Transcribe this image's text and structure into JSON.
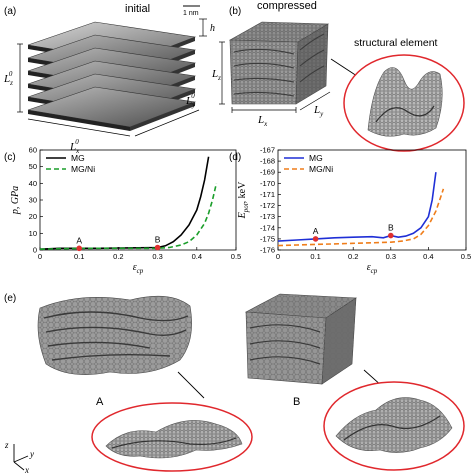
{
  "panels": {
    "a": {
      "label": "(a)",
      "title": "initial",
      "scale_bar": "1 nm",
      "h": "h",
      "Lz": "L",
      "Lz_sub": "z",
      "Lz_sup": "0",
      "Lx": "L",
      "Lx_sub": "x",
      "Lx_sup": "0",
      "Ly": "L",
      "Ly_sub": "y",
      "Ly_sup": "0"
    },
    "b": {
      "label": "(b)",
      "title": "compressed",
      "Lz": "L",
      "Lz_sub": "z",
      "Lx": "L",
      "Lx_sub": "x",
      "Ly": "L",
      "Ly_sub": "y",
      "inset_title": "structural element"
    },
    "c": {
      "label": "(c)"
    },
    "d": {
      "label": "(d)"
    },
    "e": {
      "label": "(e)",
      "snap_A": "A",
      "snap_B": "B",
      "axis_z": "z",
      "axis_y": "y",
      "axis_x": "x"
    }
  },
  "chart_data": [
    {
      "type": "line",
      "panel": "c",
      "ylabel": "p, GPa",
      "xlabel": "ε",
      "xlabel_sub": "cp",
      "xlim": [
        0,
        0.5
      ],
      "ylim": [
        0,
        60
      ],
      "xticks": [
        "0",
        "0.1",
        "0.2",
        "0.3",
        "0.4",
        "0.5"
      ],
      "yticks": [
        "0",
        "10",
        "20",
        "30",
        "40",
        "50",
        "60"
      ],
      "legend": "top-left",
      "series": [
        {
          "name": "MG",
          "color": "#000000",
          "style": "solid",
          "x": [
            0,
            0.05,
            0.1,
            0.15,
            0.2,
            0.25,
            0.3,
            0.32,
            0.34,
            0.36,
            0.38,
            0.4,
            0.41,
            0.42,
            0.43
          ],
          "y": [
            0.5,
            1,
            1,
            1,
            1.2,
            1.3,
            1.5,
            2.5,
            5,
            9,
            15,
            24,
            32,
            42,
            56
          ]
        },
        {
          "name": "MG/Ni",
          "color": "#1a9e2a",
          "style": "dashed",
          "x": [
            0,
            0.05,
            0.1,
            0.15,
            0.2,
            0.25,
            0.3,
            0.33,
            0.36,
            0.38,
            0.4,
            0.42,
            0.43,
            0.44,
            0.45
          ],
          "y": [
            0.5,
            0.8,
            0.9,
            1,
            1,
            1,
            1,
            1.5,
            3,
            5,
            9,
            16,
            22,
            30,
            40
          ]
        }
      ],
      "points": [
        {
          "label": "A",
          "x": 0.1,
          "y": 1,
          "color": "#e03030"
        },
        {
          "label": "B",
          "x": 0.3,
          "y": 1.5,
          "color": "#e03030"
        }
      ]
    },
    {
      "type": "line",
      "panel": "d",
      "ylabel": "E",
      "ylabel_sub": "pot",
      "ylabel_unit": ", keV",
      "xlabel": "ε",
      "xlabel_sub": "cp",
      "xlim": [
        0,
        0.5
      ],
      "ylim": [
        -176,
        -167
      ],
      "xticks": [
        "0",
        "0.1",
        "0.2",
        "0.3",
        "0.4",
        "0.5"
      ],
      "yticks": [
        "-176",
        "-175",
        "-174",
        "-173",
        "-172",
        "-171",
        "-170",
        "-169",
        "-168",
        "-167"
      ],
      "legend": "top-left",
      "series": [
        {
          "name": "MG",
          "color": "#1f2fd6",
          "style": "solid",
          "x": [
            0,
            0.05,
            0.1,
            0.15,
            0.2,
            0.25,
            0.28,
            0.3,
            0.32,
            0.34,
            0.36,
            0.38,
            0.4,
            0.41,
            0.42
          ],
          "y": [
            -175.2,
            -175.1,
            -175,
            -174.9,
            -174.85,
            -174.8,
            -174.9,
            -174.7,
            -174.85,
            -174.75,
            -174.5,
            -174,
            -173,
            -171.5,
            -169
          ]
        },
        {
          "name": "MG/Ni",
          "color": "#ef7d1a",
          "style": "dashed",
          "x": [
            0,
            0.05,
            0.1,
            0.15,
            0.2,
            0.25,
            0.3,
            0.33,
            0.36,
            0.38,
            0.4,
            0.42,
            0.43,
            0.44
          ],
          "y": [
            -175.6,
            -175.55,
            -175.5,
            -175.45,
            -175.4,
            -175.35,
            -175.3,
            -175.2,
            -175,
            -174.6,
            -173.8,
            -172.5,
            -171.5,
            -170.5
          ]
        }
      ],
      "points": [
        {
          "label": "A",
          "x": 0.1,
          "y": -175,
          "color": "#e03030"
        },
        {
          "label": "B",
          "x": 0.3,
          "y": -174.7,
          "color": "#e03030"
        }
      ]
    }
  ]
}
